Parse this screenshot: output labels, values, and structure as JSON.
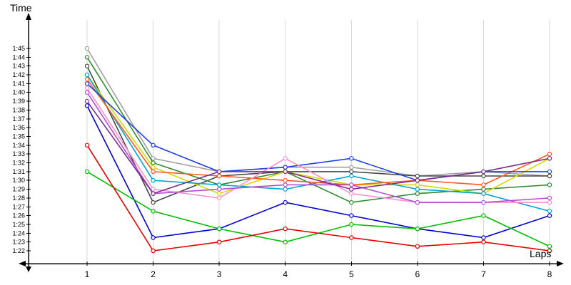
{
  "chart_data": {
    "type": "line",
    "title": "",
    "xlabel": "Laps",
    "ylabel": "Time",
    "x": [
      1,
      2,
      3,
      4,
      5,
      6,
      7,
      8
    ],
    "x_tick_labels": [
      "1",
      "2",
      "3",
      "4",
      "5",
      "6",
      "7",
      "8"
    ],
    "y_tick_labels": [
      "1:45",
      "1:44",
      "1:43",
      "1:42",
      "1:41",
      "1:40",
      "1:39",
      "1:38",
      "1:37",
      "1:36",
      "1:35",
      "1:34",
      "1:33",
      "1:32",
      "1:31",
      "1:30",
      "1:29",
      "1:28",
      "1:27",
      "1:26",
      "1:25",
      "1:24",
      "1:23",
      "1:22"
    ],
    "y_unit": "min:sec",
    "ylim_seconds": [
      82,
      105
    ],
    "grid": "vertical",
    "legend": "none",
    "marker": "open-circle",
    "series": [
      {
        "name": "gray",
        "color": "#A0A0A0",
        "values_seconds": [
          105,
          92.5,
          91,
          91.5,
          91.5,
          90.5,
          91,
          90.5
        ]
      },
      {
        "name": "dark-gray",
        "color": "#474747",
        "values_seconds": [
          103,
          87.5,
          90.5,
          91,
          91,
          90.5,
          90.5,
          90.5
        ]
      },
      {
        "name": "dark-green",
        "color": "#2E8B2E",
        "values_seconds": [
          104,
          92,
          89.5,
          91,
          87.5,
          88.5,
          89,
          89.5
        ]
      },
      {
        "name": "yellow",
        "color": "#D8D800",
        "values_seconds": [
          102,
          91.5,
          88.5,
          91,
          89.5,
          89.5,
          88.5,
          92.5
        ]
      },
      {
        "name": "cyan",
        "color": "#00A5D8",
        "values_seconds": [
          102,
          90,
          89.5,
          89,
          90.5,
          89,
          88.5,
          86.5
        ]
      },
      {
        "name": "orange",
        "color": "#FF5A1E",
        "values_seconds": [
          101.5,
          91,
          90.5,
          90,
          89.5,
          90,
          89.5,
          93
        ]
      },
      {
        "name": "royal-blue",
        "color": "#2040E0",
        "values_seconds": [
          101,
          94,
          91,
          91.5,
          92.5,
          90,
          91,
          91
        ]
      },
      {
        "name": "pink",
        "color": "#FF8FCF",
        "values_seconds": [
          100.5,
          89,
          88,
          92.5,
          88.5,
          87.5,
          87.5,
          87.5
        ]
      },
      {
        "name": "violet",
        "color": "#B050D0",
        "values_seconds": [
          100,
          88.5,
          89,
          89.5,
          89.5,
          87.5,
          87.5,
          88
        ]
      },
      {
        "name": "purple",
        "color": "#7B2D8B",
        "values_seconds": [
          99,
          88.5,
          91,
          91,
          89,
          90,
          91,
          92.5
        ]
      },
      {
        "name": "navy-blue",
        "color": "#0000CD",
        "values_seconds": [
          98.5,
          83.5,
          84.5,
          87.5,
          86,
          84.5,
          83.5,
          86
        ]
      },
      {
        "name": "bright-green",
        "color": "#00BE00",
        "values_seconds": [
          91,
          86.5,
          84.5,
          83,
          85,
          84.5,
          86,
          82.5
        ]
      },
      {
        "name": "red",
        "color": "#E60000",
        "values_seconds": [
          94,
          82,
          83,
          84.5,
          83.5,
          82.5,
          83,
          82
        ]
      }
    ]
  },
  "colors": {
    "gridline": "#d9d9d9",
    "axis": "#000000",
    "background": "#ffffff"
  }
}
